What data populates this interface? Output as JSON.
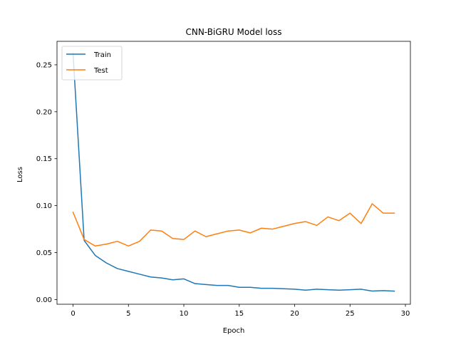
{
  "chart_data": {
    "type": "line",
    "title": "CNN-BiGRU Model loss",
    "xlabel": "Epoch",
    "ylabel": "Loss",
    "xlim": [
      -1.45,
      30.45
    ],
    "ylim": [
      -0.005,
      0.275
    ],
    "xticks": [
      0,
      5,
      10,
      15,
      20,
      25,
      30
    ],
    "yticks": [
      0.0,
      0.05,
      0.1,
      0.15,
      0.2,
      0.25
    ],
    "ytick_labels": [
      "0.00",
      "0.05",
      "0.10",
      "0.15",
      "0.20",
      "0.25"
    ],
    "grid": false,
    "legend_position": "upper left",
    "x": [
      0,
      1,
      2,
      3,
      4,
      5,
      6,
      7,
      8,
      9,
      10,
      11,
      12,
      13,
      14,
      15,
      16,
      17,
      18,
      19,
      20,
      21,
      22,
      23,
      24,
      25,
      26,
      27,
      28,
      29
    ],
    "series": [
      {
        "name": "Train",
        "color": "#1f77b4",
        "values": [
          0.262,
          0.063,
          0.047,
          0.039,
          0.033,
          0.03,
          0.027,
          0.024,
          0.023,
          0.021,
          0.022,
          0.017,
          0.016,
          0.015,
          0.015,
          0.013,
          0.013,
          0.012,
          0.012,
          0.0115,
          0.011,
          0.01,
          0.011,
          0.0105,
          0.01,
          0.0105,
          0.011,
          0.009,
          0.0095,
          0.009
        ]
      },
      {
        "name": "Test",
        "color": "#ff7f0e",
        "values": [
          0.093,
          0.064,
          0.057,
          0.059,
          0.062,
          0.057,
          0.062,
          0.074,
          0.073,
          0.065,
          0.064,
          0.073,
          0.067,
          0.07,
          0.073,
          0.074,
          0.071,
          0.076,
          0.075,
          0.078,
          0.081,
          0.083,
          0.079,
          0.088,
          0.084,
          0.092,
          0.081,
          0.102,
          0.092,
          0.092
        ]
      }
    ]
  }
}
